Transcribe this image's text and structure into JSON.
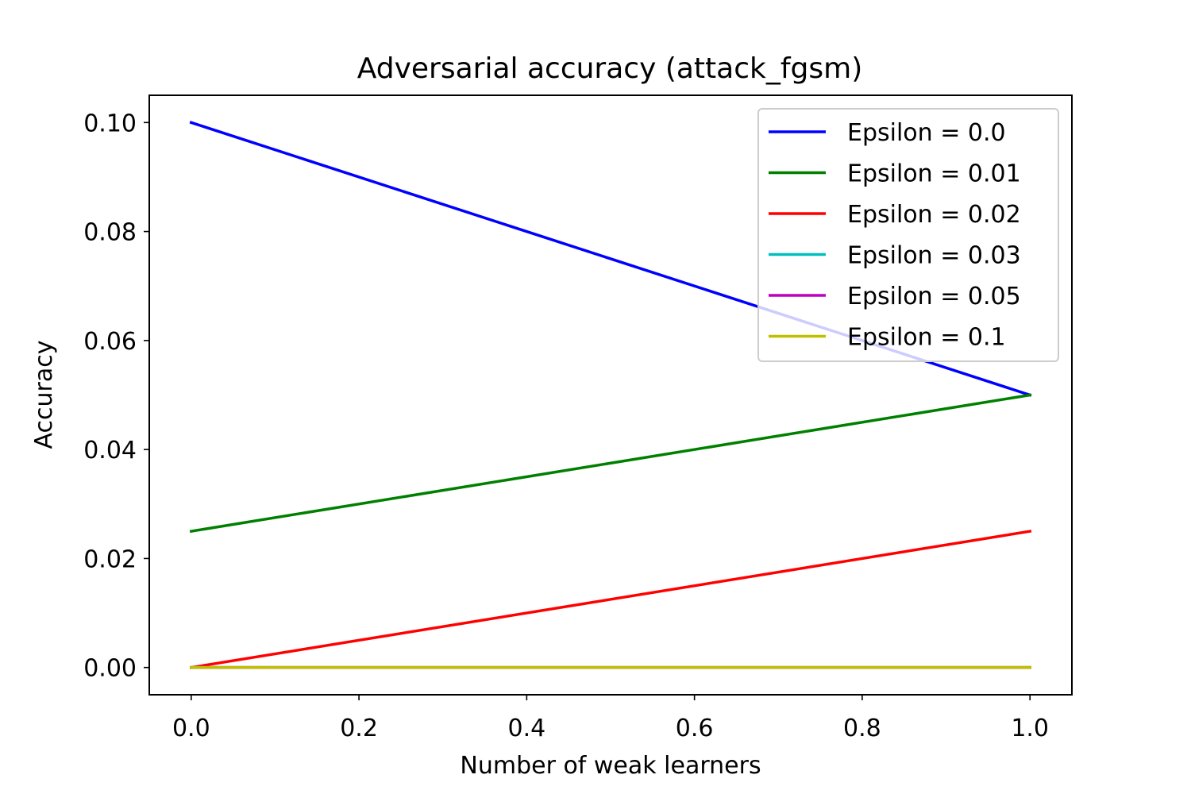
{
  "chart_data": {
    "type": "line",
    "title": "Adversarial accuracy (attack_fgsm)",
    "xlabel": "Number of weak learners",
    "ylabel": "Accuracy",
    "x": [
      0.0,
      1.0
    ],
    "xlim": [
      -0.05,
      1.05
    ],
    "ylim": [
      -0.005,
      0.105
    ],
    "xticks": [
      "0.0",
      "0.2",
      "0.4",
      "0.6",
      "0.8",
      "1.0"
    ],
    "yticks": [
      "0.00",
      "0.02",
      "0.04",
      "0.06",
      "0.08",
      "0.10"
    ],
    "grid": false,
    "legend_position": "top-right",
    "series": [
      {
        "name": "Epsilon = 0.0",
        "color": "#0000ff",
        "values": [
          0.1,
          0.05
        ]
      },
      {
        "name": "Epsilon = 0.01",
        "color": "#008000",
        "values": [
          0.025,
          0.05
        ]
      },
      {
        "name": "Epsilon = 0.02",
        "color": "#ff0000",
        "values": [
          0.0,
          0.025
        ]
      },
      {
        "name": "Epsilon = 0.03",
        "color": "#00bfbf",
        "values": [
          0.0,
          0.0
        ]
      },
      {
        "name": "Epsilon = 0.05",
        "color": "#bf00bf",
        "values": [
          0.0,
          0.0
        ]
      },
      {
        "name": "Epsilon = 0.1",
        "color": "#bfbf00",
        "values": [
          0.0,
          0.0
        ]
      }
    ]
  }
}
